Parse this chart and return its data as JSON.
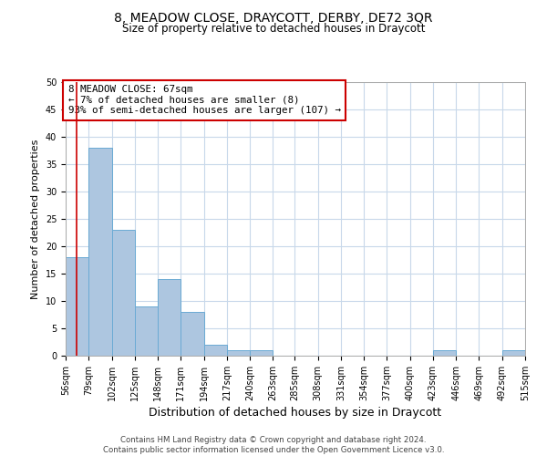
{
  "title": "8, MEADOW CLOSE, DRAYCOTT, DERBY, DE72 3QR",
  "subtitle": "Size of property relative to detached houses in Draycott",
  "xlabel": "Distribution of detached houses by size in Draycott",
  "ylabel": "Number of detached properties",
  "bin_edges": [
    56,
    79,
    102,
    125,
    148,
    171,
    194,
    217,
    240,
    263,
    285,
    308,
    331,
    354,
    377,
    400,
    423,
    446,
    469,
    492,
    515
  ],
  "bin_counts": [
    18,
    38,
    23,
    9,
    14,
    8,
    2,
    1,
    1,
    0,
    0,
    0,
    0,
    0,
    0,
    0,
    1,
    0,
    0,
    1
  ],
  "bar_color": "#adc6e0",
  "bar_edge_color": "#6aaad4",
  "grid_color": "#c8d8ea",
  "vline_x": 67,
  "vline_color": "#cc0000",
  "annotation_text": "8 MEADOW CLOSE: 67sqm\n← 7% of detached houses are smaller (8)\n93% of semi-detached houses are larger (107) →",
  "annotation_box_color": "#ffffff",
  "annotation_box_edge_color": "#cc0000",
  "ylim": [
    0,
    50
  ],
  "yticks": [
    0,
    5,
    10,
    15,
    20,
    25,
    30,
    35,
    40,
    45,
    50
  ],
  "footer_text": "Contains HM Land Registry data © Crown copyright and database right 2024.\nContains public sector information licensed under the Open Government Licence v3.0.",
  "background_color": "#ffffff",
  "tick_label_fontsize": 7,
  "title_fontsize": 10,
  "subtitle_fontsize": 8.5,
  "ylabel_fontsize": 8,
  "xlabel_fontsize": 9
}
